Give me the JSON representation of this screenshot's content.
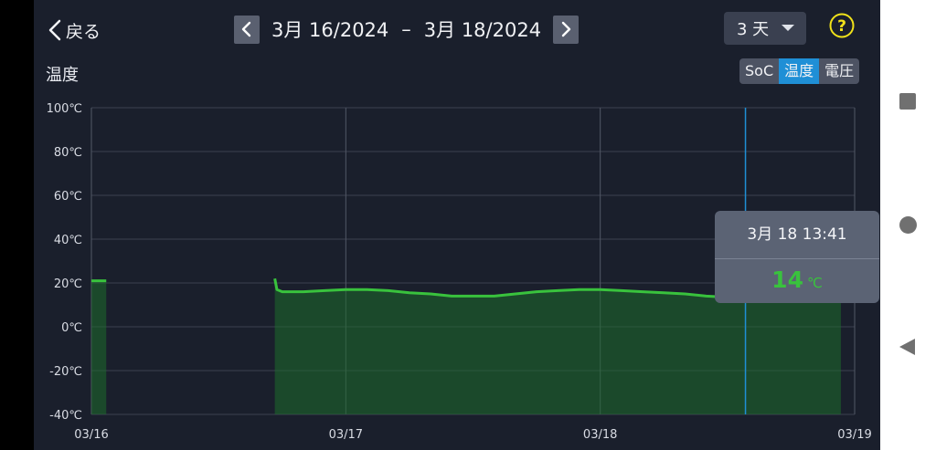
{
  "header": {
    "back_label": "戻る",
    "date_from": "3月 16/2024",
    "date_separator": "–",
    "date_to": "3月 18/2024",
    "range_value": "3 天"
  },
  "chart_title": "温度",
  "metric_tabs": [
    {
      "label": "SoC",
      "active": false
    },
    {
      "label": "温度",
      "active": true
    },
    {
      "label": "電圧",
      "active": false
    }
  ],
  "tooltip": {
    "time": "3月 18 13:41",
    "value": "14",
    "unit": "℃"
  },
  "colors": {
    "accent": "#1f8fd6",
    "series": "#39c23d",
    "background": "#1a1f2c"
  },
  "chart_data": {
    "type": "area",
    "title": "温度",
    "y_tick_labels": [
      "100℃",
      "80℃",
      "60℃",
      "40℃",
      "20℃",
      "0℃",
      "-20℃",
      "-40℃"
    ],
    "ylim": [
      -40,
      100
    ],
    "x_tick_labels": [
      "03/16",
      "03/17",
      "03/18",
      "03/19"
    ],
    "xlim_hours": [
      0,
      72
    ],
    "cursor_hour": 61.7,
    "grid": true,
    "series": [
      {
        "segments": [
          [
            [
              0,
              21
            ],
            [
              1.1,
              21
            ],
            [
              1.4,
              21
            ]
          ],
          [
            [
              17.3,
              22
            ],
            [
              17.5,
              17
            ],
            [
              18,
              16
            ],
            [
              20,
              16
            ],
            [
              22,
              16.5
            ],
            [
              24,
              17
            ],
            [
              26,
              17
            ],
            [
              28,
              16.5
            ],
            [
              30,
              15.5
            ],
            [
              32,
              15
            ],
            [
              34,
              14
            ],
            [
              36,
              14
            ],
            [
              38,
              14
            ],
            [
              40,
              15
            ],
            [
              42,
              16
            ],
            [
              44,
              16.5
            ],
            [
              46,
              17
            ],
            [
              48,
              17
            ],
            [
              50,
              16.5
            ],
            [
              52,
              16
            ],
            [
              54,
              15.5
            ],
            [
              56,
              15
            ],
            [
              58,
              14
            ],
            [
              60,
              13.5
            ],
            [
              62,
              13.5
            ],
            [
              64,
              13
            ],
            [
              66,
              13
            ],
            [
              68,
              13
            ],
            [
              70,
              13
            ],
            [
              70.7,
              13
            ]
          ]
        ]
      }
    ]
  }
}
